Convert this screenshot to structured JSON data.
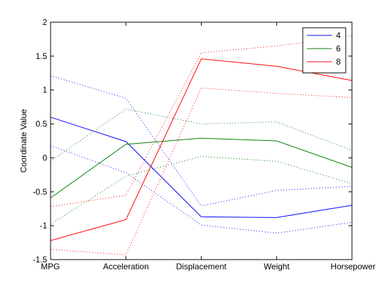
{
  "chart_data": {
    "type": "line",
    "title": "",
    "xlabel": "",
    "ylabel": "Coordinate Value",
    "categories": [
      "MPG",
      "Acceleration",
      "Displacement",
      "Weight",
      "Horsepower"
    ],
    "ylim": [
      -1.5,
      2
    ],
    "yticks": [
      -1.5,
      -1,
      -0.5,
      0,
      0.5,
      1,
      1.5,
      2
    ],
    "ytick_labels": [
      "-1.5",
      "-1",
      "-0.5",
      "0",
      "0.5",
      "1",
      "1.5",
      "2"
    ],
    "grid": false,
    "legend_location": "top-right",
    "series": [
      {
        "name": "4",
        "color": "#0000ff",
        "values": [
          0.6,
          0.24,
          -0.87,
          -0.88,
          -0.7
        ],
        "upper": [
          1.21,
          0.88,
          -0.71,
          -0.48,
          -0.42
        ],
        "lower": [
          0.18,
          -0.22,
          -0.99,
          -1.11,
          -0.95
        ]
      },
      {
        "name": "6",
        "color": "#008000",
        "values": [
          -0.59,
          0.2,
          0.29,
          0.25,
          -0.14
        ],
        "upper": [
          -0.05,
          0.72,
          0.5,
          0.53,
          0.11
        ],
        "lower": [
          -0.98,
          -0.27,
          0.02,
          -0.05,
          -0.38
        ]
      },
      {
        "name": "8",
        "color": "#ff0000",
        "values": [
          -1.22,
          -0.91,
          1.46,
          1.35,
          1.14
        ],
        "upper": [
          -0.72,
          -0.55,
          1.55,
          1.65,
          1.8
        ],
        "lower": [
          -1.35,
          -1.43,
          1.03,
          0.95,
          0.89
        ]
      }
    ]
  }
}
